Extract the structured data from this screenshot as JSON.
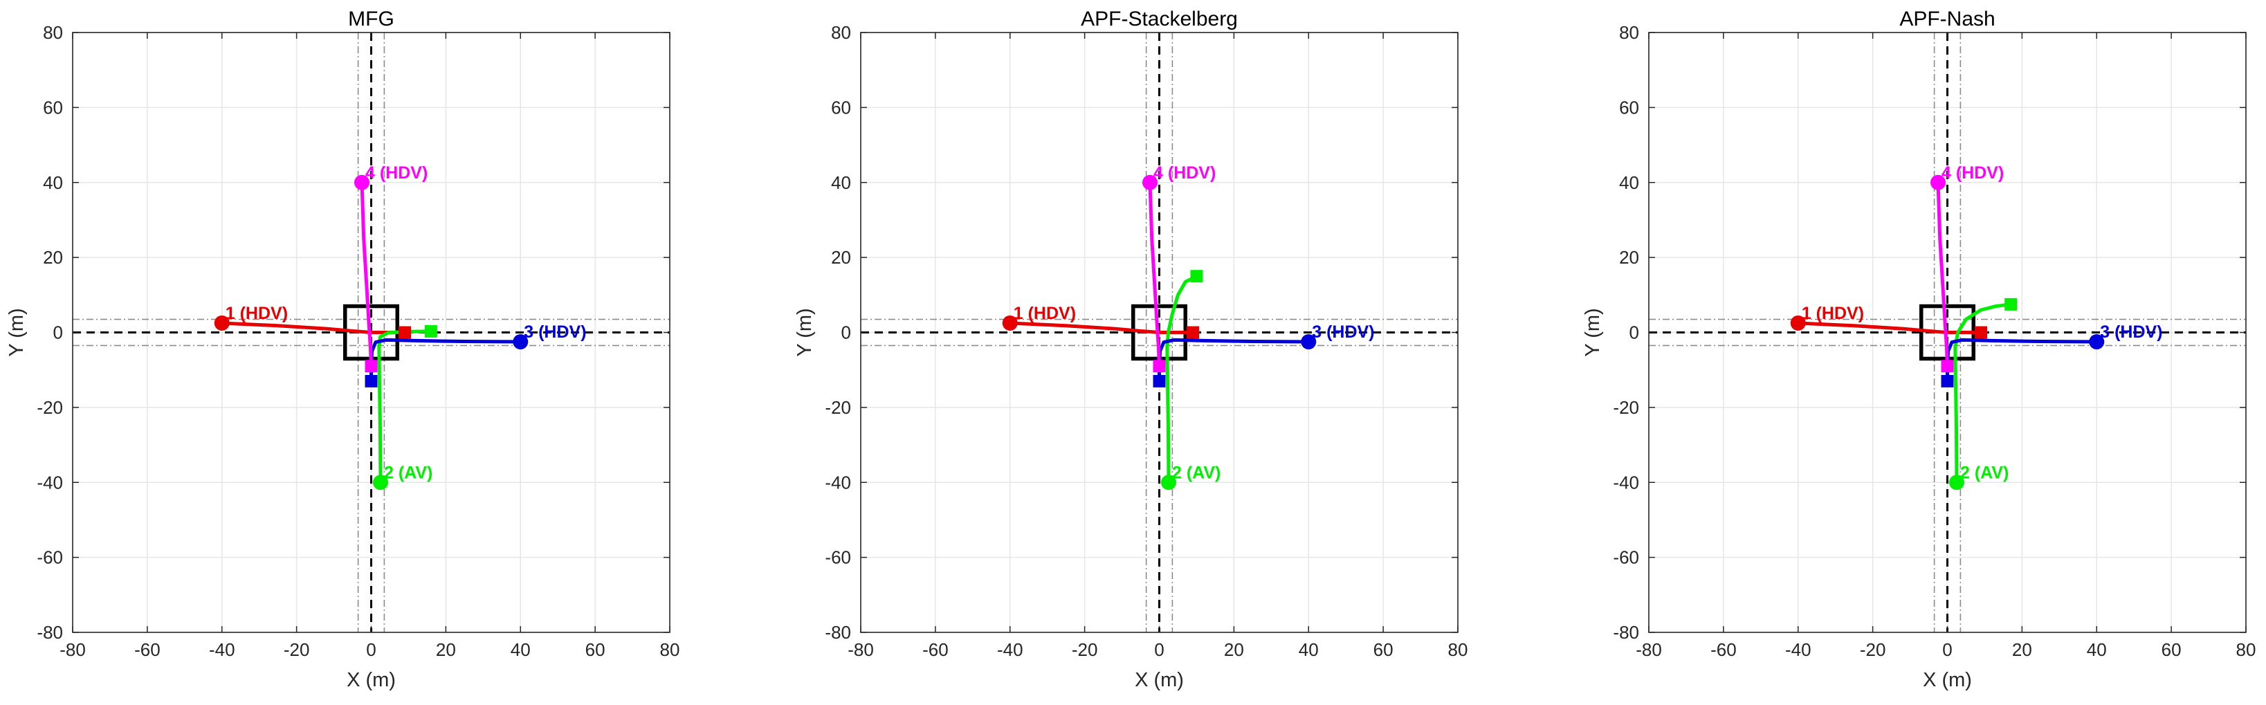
{
  "colors": {
    "hdv1": "#e60000",
    "av2": "#00ee00",
    "hdv3": "#0000dd",
    "hdv4": "#ff00ff",
    "grid": "#e6e6e6",
    "lane": "#8c8c8c",
    "center": "#000000"
  },
  "chart_data": [
    {
      "type": "line",
      "title": "MFG",
      "xlabel": "X (m)",
      "ylabel": "Y (m)",
      "xlim": [
        -80,
        80
      ],
      "ylim": [
        -80,
        80
      ],
      "ticks": [
        -80,
        -60,
        -40,
        -20,
        0,
        20,
        40,
        60,
        80
      ],
      "grid": true,
      "lane_lines": [
        -3.5,
        3.5
      ],
      "conflict_box": {
        "x": [
          -7,
          7
        ],
        "y": [
          -7,
          7
        ]
      },
      "series": [
        {
          "name": "1 (HDV)",
          "role": "hdv1",
          "x": [
            -40,
            -25,
            -12,
            -4,
            0,
            4,
            9
          ],
          "y": [
            2.5,
            1.8,
            1.0,
            0.3,
            0,
            0,
            0
          ]
        },
        {
          "name": "2 (AV)",
          "role": "av2",
          "x": [
            2.5,
            2.4,
            2.2,
            2.1,
            2.4,
            4.5,
            9,
            16
          ],
          "y": [
            -40,
            -25,
            -12,
            -4,
            -1.2,
            -0.1,
            0.2,
            0.3
          ]
        },
        {
          "name": "3 (HDV)",
          "role": "hdv3",
          "x": [
            40,
            25,
            12,
            4,
            1.2,
            0.2,
            0,
            0
          ],
          "y": [
            -2.5,
            -2.4,
            -2.2,
            -2.0,
            -2.6,
            -5,
            -9,
            -13
          ]
        },
        {
          "name": "4 (HDV)",
          "role": "hdv4",
          "x": [
            -2.5,
            -2,
            -1.2,
            -0.6,
            -0.2,
            0
          ],
          "y": [
            40,
            25,
            12,
            2,
            -4,
            -9
          ]
        }
      ]
    },
    {
      "type": "line",
      "title": "APF-Stackelberg",
      "xlabel": "X (m)",
      "ylabel": "Y (m)",
      "xlim": [
        -80,
        80
      ],
      "ylim": [
        -80,
        80
      ],
      "ticks": [
        -80,
        -60,
        -40,
        -20,
        0,
        20,
        40,
        60,
        80
      ],
      "grid": true,
      "lane_lines": [
        -3.5,
        3.5
      ],
      "conflict_box": {
        "x": [
          -7,
          7
        ],
        "y": [
          -7,
          7
        ]
      },
      "series": [
        {
          "name": "1 (HDV)",
          "role": "hdv1",
          "x": [
            -40,
            -25,
            -12,
            -4,
            0,
            4,
            9
          ],
          "y": [
            2.5,
            1.8,
            1.0,
            0.3,
            0,
            0,
            0
          ]
        },
        {
          "name": "2 (AV)",
          "role": "av2",
          "x": [
            2.5,
            2.4,
            2.2,
            2.1,
            2.4,
            3.5,
            5,
            7,
            10
          ],
          "y": [
            -40,
            -25,
            -12,
            -4,
            0,
            5,
            10,
            13.5,
            15
          ]
        },
        {
          "name": "3 (HDV)",
          "role": "hdv3",
          "x": [
            40,
            25,
            12,
            4,
            1.2,
            0.2,
            0,
            0
          ],
          "y": [
            -2.5,
            -2.4,
            -2.2,
            -2.0,
            -2.6,
            -5,
            -9,
            -13
          ]
        },
        {
          "name": "4 (HDV)",
          "role": "hdv4",
          "x": [
            -2.5,
            -2,
            -1.2,
            -0.6,
            -0.2,
            0
          ],
          "y": [
            40,
            25,
            12,
            2,
            -4,
            -9
          ]
        }
      ]
    },
    {
      "type": "line",
      "title": "APF-Nash",
      "xlabel": "X (m)",
      "ylabel": "Y (m)",
      "xlim": [
        -80,
        80
      ],
      "ylim": [
        -80,
        80
      ],
      "ticks": [
        -80,
        -60,
        -40,
        -20,
        0,
        20,
        40,
        60,
        80
      ],
      "grid": true,
      "lane_lines": [
        -3.5,
        3.5
      ],
      "conflict_box": {
        "x": [
          -7,
          7
        ],
        "y": [
          -7,
          7
        ]
      },
      "series": [
        {
          "name": "1 (HDV)",
          "role": "hdv1",
          "x": [
            -40,
            -25,
            -12,
            -4,
            0,
            4,
            9
          ],
          "y": [
            2.5,
            1.8,
            1.0,
            0.3,
            0,
            0,
            0
          ]
        },
        {
          "name": "2 (AV)",
          "role": "av2",
          "x": [
            2.5,
            2.4,
            2.2,
            2.1,
            2.8,
            5,
            9,
            13,
            17
          ],
          "y": [
            -40,
            -25,
            -12,
            -4,
            0,
            3.5,
            6,
            7,
            7.5
          ]
        },
        {
          "name": "3 (HDV)",
          "role": "hdv3",
          "x": [
            40,
            25,
            12,
            4,
            1.2,
            0.2,
            0,
            0
          ],
          "y": [
            -2.5,
            -2.4,
            -2.2,
            -2.0,
            -2.6,
            -5,
            -9,
            -13
          ]
        },
        {
          "name": "4 (HDV)",
          "role": "hdv4",
          "x": [
            -2.5,
            -2,
            -1.2,
            -0.6,
            -0.2,
            0
          ],
          "y": [
            40,
            25,
            12,
            2,
            -4,
            -9
          ]
        }
      ]
    }
  ]
}
